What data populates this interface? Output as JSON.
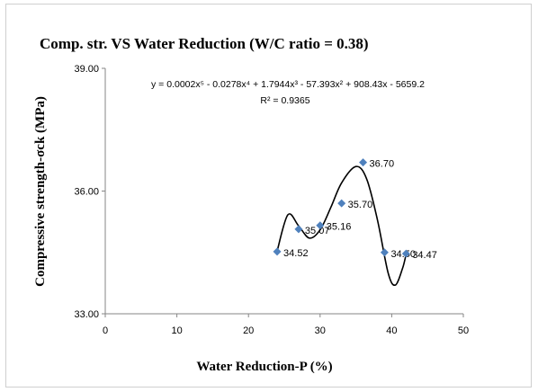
{
  "chart_data": {
    "type": "scatter",
    "title": "Comp. str. VS  Water Reduction  (W/C ratio = 0.38)",
    "xlabel": "Water Reduction-P (%)",
    "ylabel": "Compressive strength-σck  (MPa)",
    "xlim": [
      0,
      50
    ],
    "ylim": [
      33,
      39
    ],
    "x_ticks": [
      "0",
      "10",
      "20",
      "30",
      "40",
      "50"
    ],
    "y_ticks": [
      "33.00",
      "36.00",
      "39.00"
    ],
    "grid": false,
    "legend": "none",
    "marker_color": "#4f81bd",
    "series": [
      {
        "x": [
          24,
          27,
          30,
          33,
          36,
          39,
          42
        ],
        "y": [
          34.52,
          35.07,
          35.16,
          35.7,
          36.7,
          34.5,
          34.47
        ],
        "labels": [
          "34.52",
          "35.07",
          "35.16",
          "35.70",
          "36.70",
          "34.50",
          "34.47"
        ]
      }
    ],
    "trendline": {
      "type": "polynomial",
      "order": 5,
      "equation": "y = 0.0002x⁵ - 0.0278x⁴ + 1.7944x³ - 57.393x² + 908.43x - 5659.2",
      "r_squared": "R² = 0.9365",
      "curve_points": [
        [
          24,
          34.53
        ],
        [
          25.5,
          35.42
        ],
        [
          27,
          35.15
        ],
        [
          28.5,
          34.85
        ],
        [
          30,
          35.05
        ],
        [
          31.5,
          35.6
        ],
        [
          33,
          36.2
        ],
        [
          35,
          36.6
        ],
        [
          36.5,
          36.3
        ],
        [
          38,
          35.3
        ],
        [
          39.5,
          34.0
        ],
        [
          40.5,
          33.7
        ],
        [
          41.5,
          34.1
        ],
        [
          42,
          34.45
        ]
      ]
    }
  }
}
